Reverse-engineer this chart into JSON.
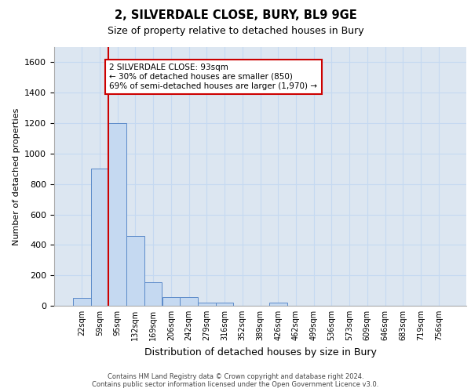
{
  "title_line1": "2, SILVERDALE CLOSE, BURY, BL9 9GE",
  "title_line2": "Size of property relative to detached houses in Bury",
  "xlabel": "Distribution of detached houses by size in Bury",
  "ylabel": "Number of detached properties",
  "footer_line1": "Contains HM Land Registry data © Crown copyright and database right 2024.",
  "footer_line2": "Contains public sector information licensed under the Open Government Licence v3.0.",
  "categories": [
    "22sqm",
    "59sqm",
    "95sqm",
    "132sqm",
    "169sqm",
    "206sqm",
    "242sqm",
    "279sqm",
    "316sqm",
    "352sqm",
    "389sqm",
    "426sqm",
    "462sqm",
    "499sqm",
    "536sqm",
    "573sqm",
    "609sqm",
    "646sqm",
    "683sqm",
    "719sqm",
    "756sqm"
  ],
  "values": [
    50,
    900,
    1200,
    460,
    155,
    55,
    55,
    20,
    20,
    0,
    0,
    20,
    0,
    0,
    0,
    0,
    0,
    0,
    0,
    0,
    0
  ],
  "bar_color": "#c5d9f1",
  "bar_edge_color": "#5b8ac9",
  "grid_color": "#c5d9f1",
  "background_color": "#dce6f1",
  "vline_color": "#cc0000",
  "annotation_text": "2 SILVERDALE CLOSE: 93sqm\n← 30% of detached houses are smaller (850)\n69% of semi-detached houses are larger (1,970) →",
  "annotation_box_color": "#cc0000",
  "ylim": [
    0,
    1700
  ],
  "yticks": [
    0,
    200,
    400,
    600,
    800,
    1000,
    1200,
    1400,
    1600
  ]
}
